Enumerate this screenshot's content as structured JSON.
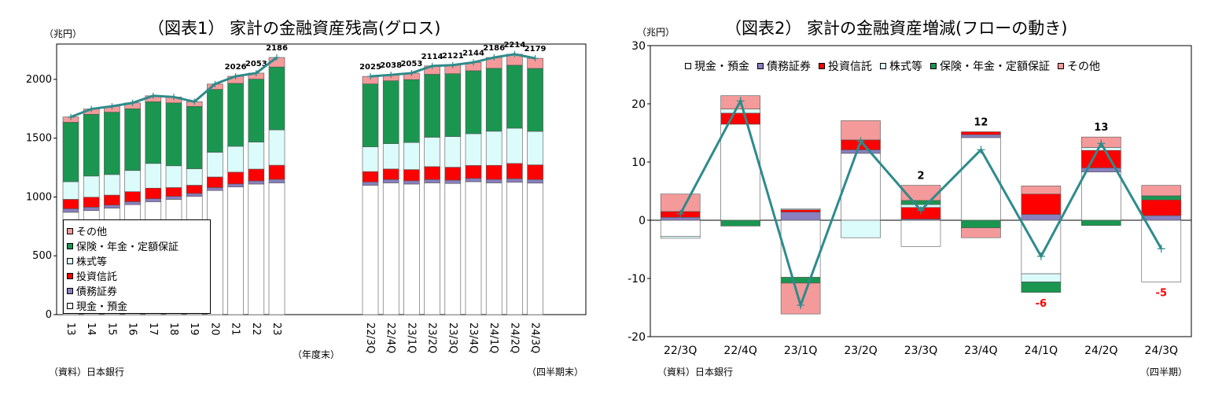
{
  "chart_data": [
    {
      "type": "bar",
      "title": "（図表1） 家計の金融資産残高(グロス)",
      "unit_label": "（兆円）",
      "source_label": "（資料）日本銀行",
      "fy_label": "（年度末）",
      "quarter_label": "（四半期末）",
      "stacked": true,
      "categories": [
        "13",
        "14",
        "15",
        "16",
        "17",
        "18",
        "19",
        "20",
        "21",
        "22",
        "23",
        "22/3Q",
        "22/4Q",
        "23/1Q",
        "23/2Q",
        "23/3Q",
        "23/4Q",
        "24/1Q",
        "24/2Q",
        "24/3Q"
      ],
      "ylim": [
        0,
        2300
      ],
      "yticks": [
        "0",
        "500",
        "1000",
        "1500",
        "2000"
      ],
      "series": [
        {
          "name": "現金・預金",
          "color": "#ffffff",
          "values": [
            870,
            885,
            905,
            935,
            960,
            980,
            1005,
            1055,
            1085,
            1110,
            1120,
            1100,
            1120,
            1110,
            1120,
            1115,
            1130,
            1120,
            1125,
            1118
          ]
        },
        {
          "name": "債務証券",
          "color": "#8a7fbf",
          "values": [
            30,
            28,
            26,
            25,
            25,
            25,
            25,
            25,
            26,
            27,
            30,
            28,
            28,
            28,
            28,
            28,
            28,
            29,
            30,
            30
          ]
        },
        {
          "name": "投資信託",
          "color": "#ff0000",
          "values": [
            80,
            85,
            85,
            85,
            90,
            75,
            70,
            90,
            100,
            100,
            120,
            88,
            90,
            95,
            110,
            110,
            110,
            120,
            130,
            125
          ]
        },
        {
          "name": "株式等",
          "color": "#dcfbfb",
          "values": [
            150,
            180,
            175,
            180,
            210,
            185,
            140,
            210,
            220,
            230,
            300,
            210,
            215,
            230,
            250,
            260,
            270,
            290,
            300,
            285
          ]
        },
        {
          "name": "保険・年金・定額保証",
          "color": "#1a9650",
          "values": [
            505,
            525,
            530,
            525,
            525,
            535,
            530,
            535,
            535,
            535,
            535,
            535,
            535,
            535,
            535,
            535,
            535,
            535,
            535,
            535
          ]
        },
        {
          "name": "その他",
          "color": "#f49a9a",
          "values": [
            45,
            45,
            50,
            50,
            50,
            50,
            40,
            45,
            60,
            51,
            81,
            64,
            50,
            55,
            71,
            73,
            71,
            92,
            94,
            86
          ]
        }
      ],
      "totals": [
        1680,
        1748,
        1771,
        1800,
        1860,
        1850,
        1810,
        1960,
        2026,
        2053,
        2186,
        2025,
        2038,
        2053,
        2114,
        2121,
        2144,
        2186,
        2214,
        2179
      ],
      "total_labels": [
        "",
        "",
        "",
        "",
        "",
        "",
        "",
        "",
        "2026",
        "2053",
        "2186",
        "2025",
        "2038",
        "2053",
        "2114",
        "2121",
        "2144",
        "2186",
        "2214",
        "2179"
      ],
      "legend_order": [
        "その他",
        "保険・年金・定額保証",
        "株式等",
        "投資信託",
        "債務証券",
        "現金・預金"
      ],
      "line_color": "#2e8b8b"
    },
    {
      "type": "bar",
      "title": "（図表2） 家計の金融資産増減(フローの動き)",
      "unit_label": "（兆円）",
      "source_label": "（資料）日本銀行",
      "period_label": "（四半期）",
      "stacked": true,
      "categories": [
        "22/3Q",
        "22/4Q",
        "23/1Q",
        "23/2Q",
        "23/3Q",
        "23/4Q",
        "24/1Q",
        "24/2Q",
        "24/3Q"
      ],
      "ylim": [
        -20,
        30
      ],
      "yticks": [
        "-20",
        "-10",
        "0",
        "10",
        "20",
        "30"
      ],
      "series": [
        {
          "name": "現金・預金",
          "color": "#ffffff",
          "values": [
            -2.8,
            16.5,
            -9.8,
            11.5,
            -4.5,
            14.2,
            -9.2,
            8.3,
            -10.6
          ]
        },
        {
          "name": "債務証券",
          "color": "#8a7fbf",
          "values": [
            0.5,
            0,
            1.4,
            0.6,
            0.2,
            0.5,
            1.0,
            0.7,
            0.8
          ]
        },
        {
          "name": "投資信託",
          "color": "#ff0000",
          "values": [
            1.0,
            1.9,
            0.4,
            1.7,
            2.0,
            0.5,
            3.5,
            3.0,
            2.7
          ]
        },
        {
          "name": "株式等",
          "color": "#dcfbfb",
          "values": [
            -0.3,
            0.7,
            0.2,
            -3.0,
            0.5,
            0,
            -1.4,
            0.5,
            0
          ]
        },
        {
          "name": "保険・年金・定額保証",
          "color": "#1a9650",
          "values": [
            0,
            -1.0,
            -1.0,
            0,
            0.7,
            -1.3,
            -1.8,
            -0.9,
            0.7
          ]
        },
        {
          "name": "その他",
          "color": "#f49a9a",
          "values": [
            3.0,
            2.3,
            -5.3,
            3.3,
            2.6,
            -1.7,
            1.4,
            1.8,
            1.8
          ]
        }
      ],
      "totals": [
        1.1,
        20.5,
        -14.6,
        13.6,
        1.7,
        12.1,
        -6.2,
        13.2,
        -4.9
      ],
      "total_labels": [
        "",
        "",
        "",
        "",
        "2",
        "12",
        "-6",
        "13",
        "-5"
      ],
      "total_label_colors": [
        "#000",
        "#000",
        "#000",
        "#000",
        "#000",
        "#000",
        "#ff0000",
        "#000",
        "#ff0000"
      ],
      "legend_order": [
        "現金・預金",
        "債務証券",
        "投資信託",
        "株式等",
        "保険・年金・定額保証",
        "その他"
      ],
      "line_color": "#2e8b8b"
    }
  ]
}
